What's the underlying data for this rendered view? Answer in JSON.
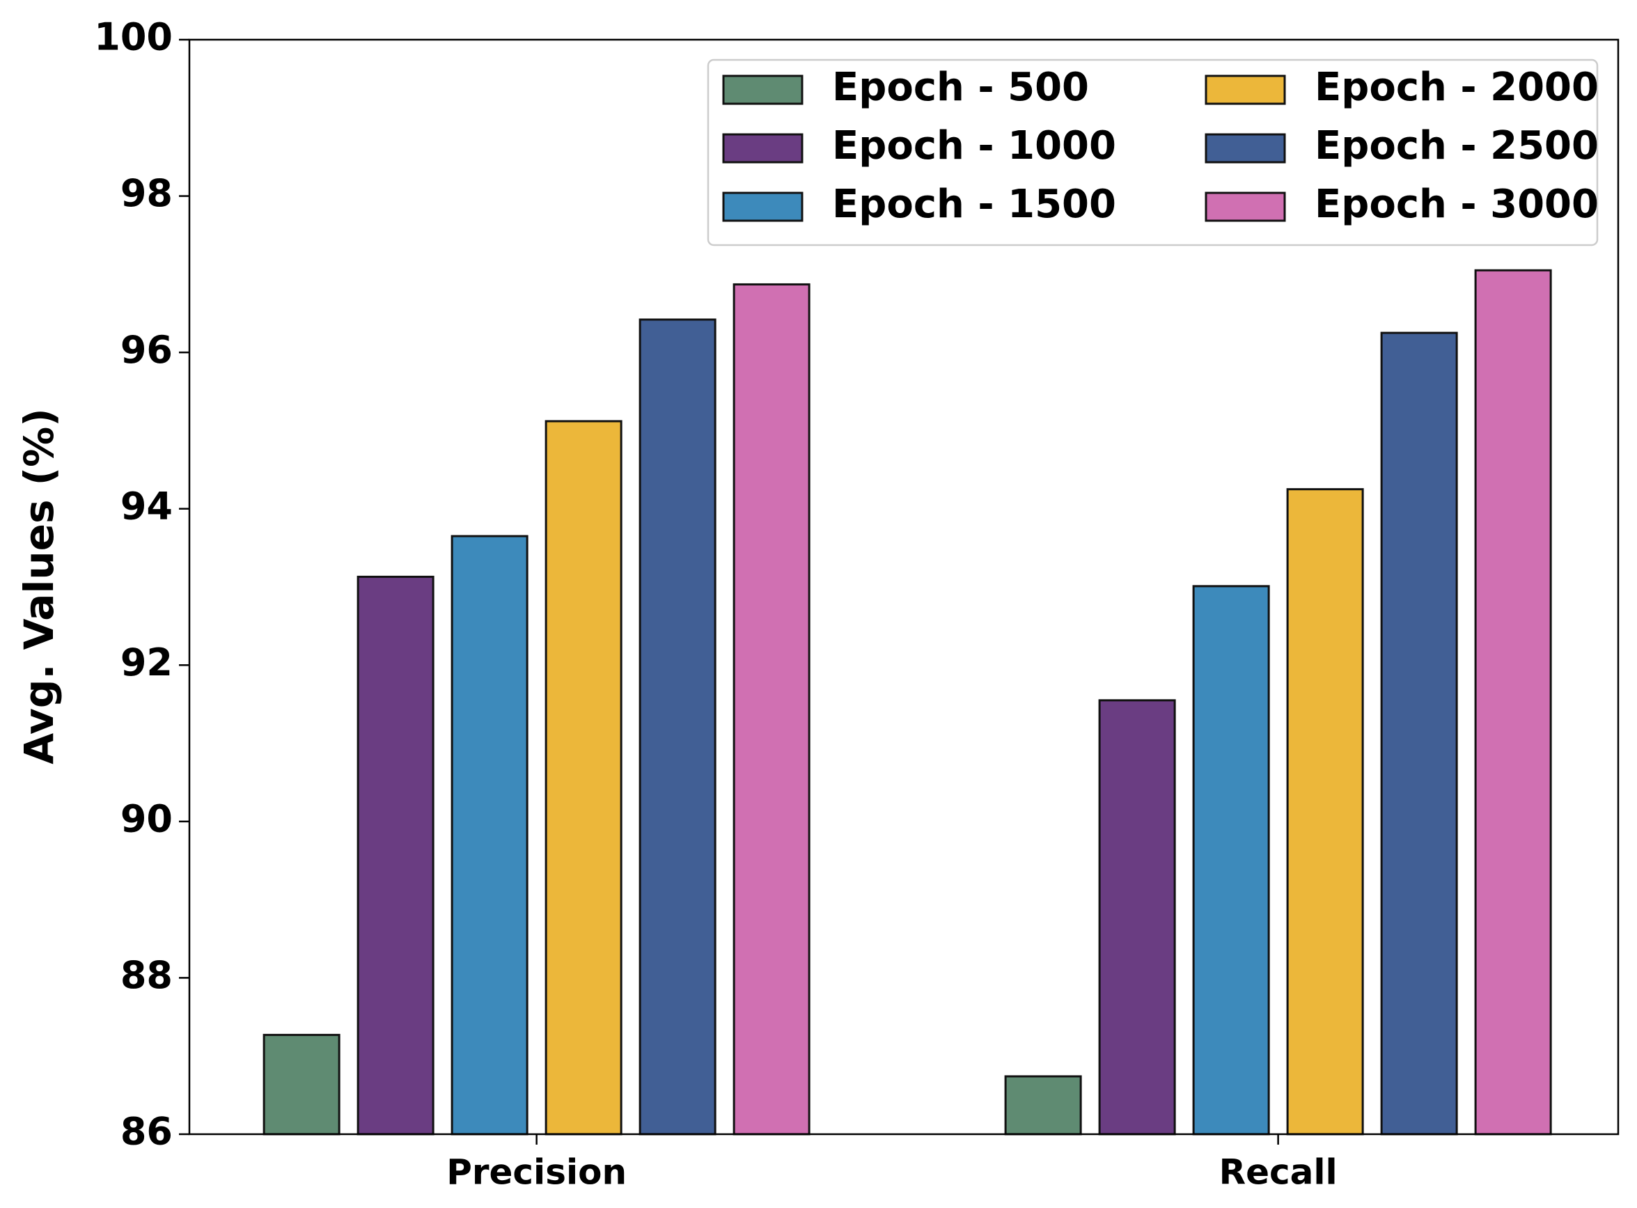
{
  "chart_data": {
    "type": "bar",
    "y_label": "Avg. Values (%)",
    "categories": [
      "Precision",
      "Recall"
    ],
    "series": [
      {
        "name": "Epoch - 500",
        "color": "#5f8b72",
        "values": [
          87.27,
          86.74
        ]
      },
      {
        "name": "Epoch - 1000",
        "color": "#6a3d82",
        "values": [
          93.13,
          91.55
        ]
      },
      {
        "name": "Epoch - 1500",
        "color": "#3d8abb",
        "values": [
          93.65,
          93.01
        ]
      },
      {
        "name": "Epoch - 2000",
        "color": "#ecb73a",
        "values": [
          95.12,
          94.25
        ]
      },
      {
        "name": "Epoch - 2500",
        "color": "#415f95",
        "values": [
          96.42,
          96.25
        ]
      },
      {
        "name": "Epoch - 3000",
        "color": "#d070b2",
        "values": [
          96.87,
          97.05
        ]
      }
    ],
    "ylim": [
      86,
      100
    ],
    "yticks": [
      86,
      88,
      90,
      92,
      94,
      96,
      98,
      100
    ],
    "legend": "upper right",
    "legend_columns": 2
  }
}
